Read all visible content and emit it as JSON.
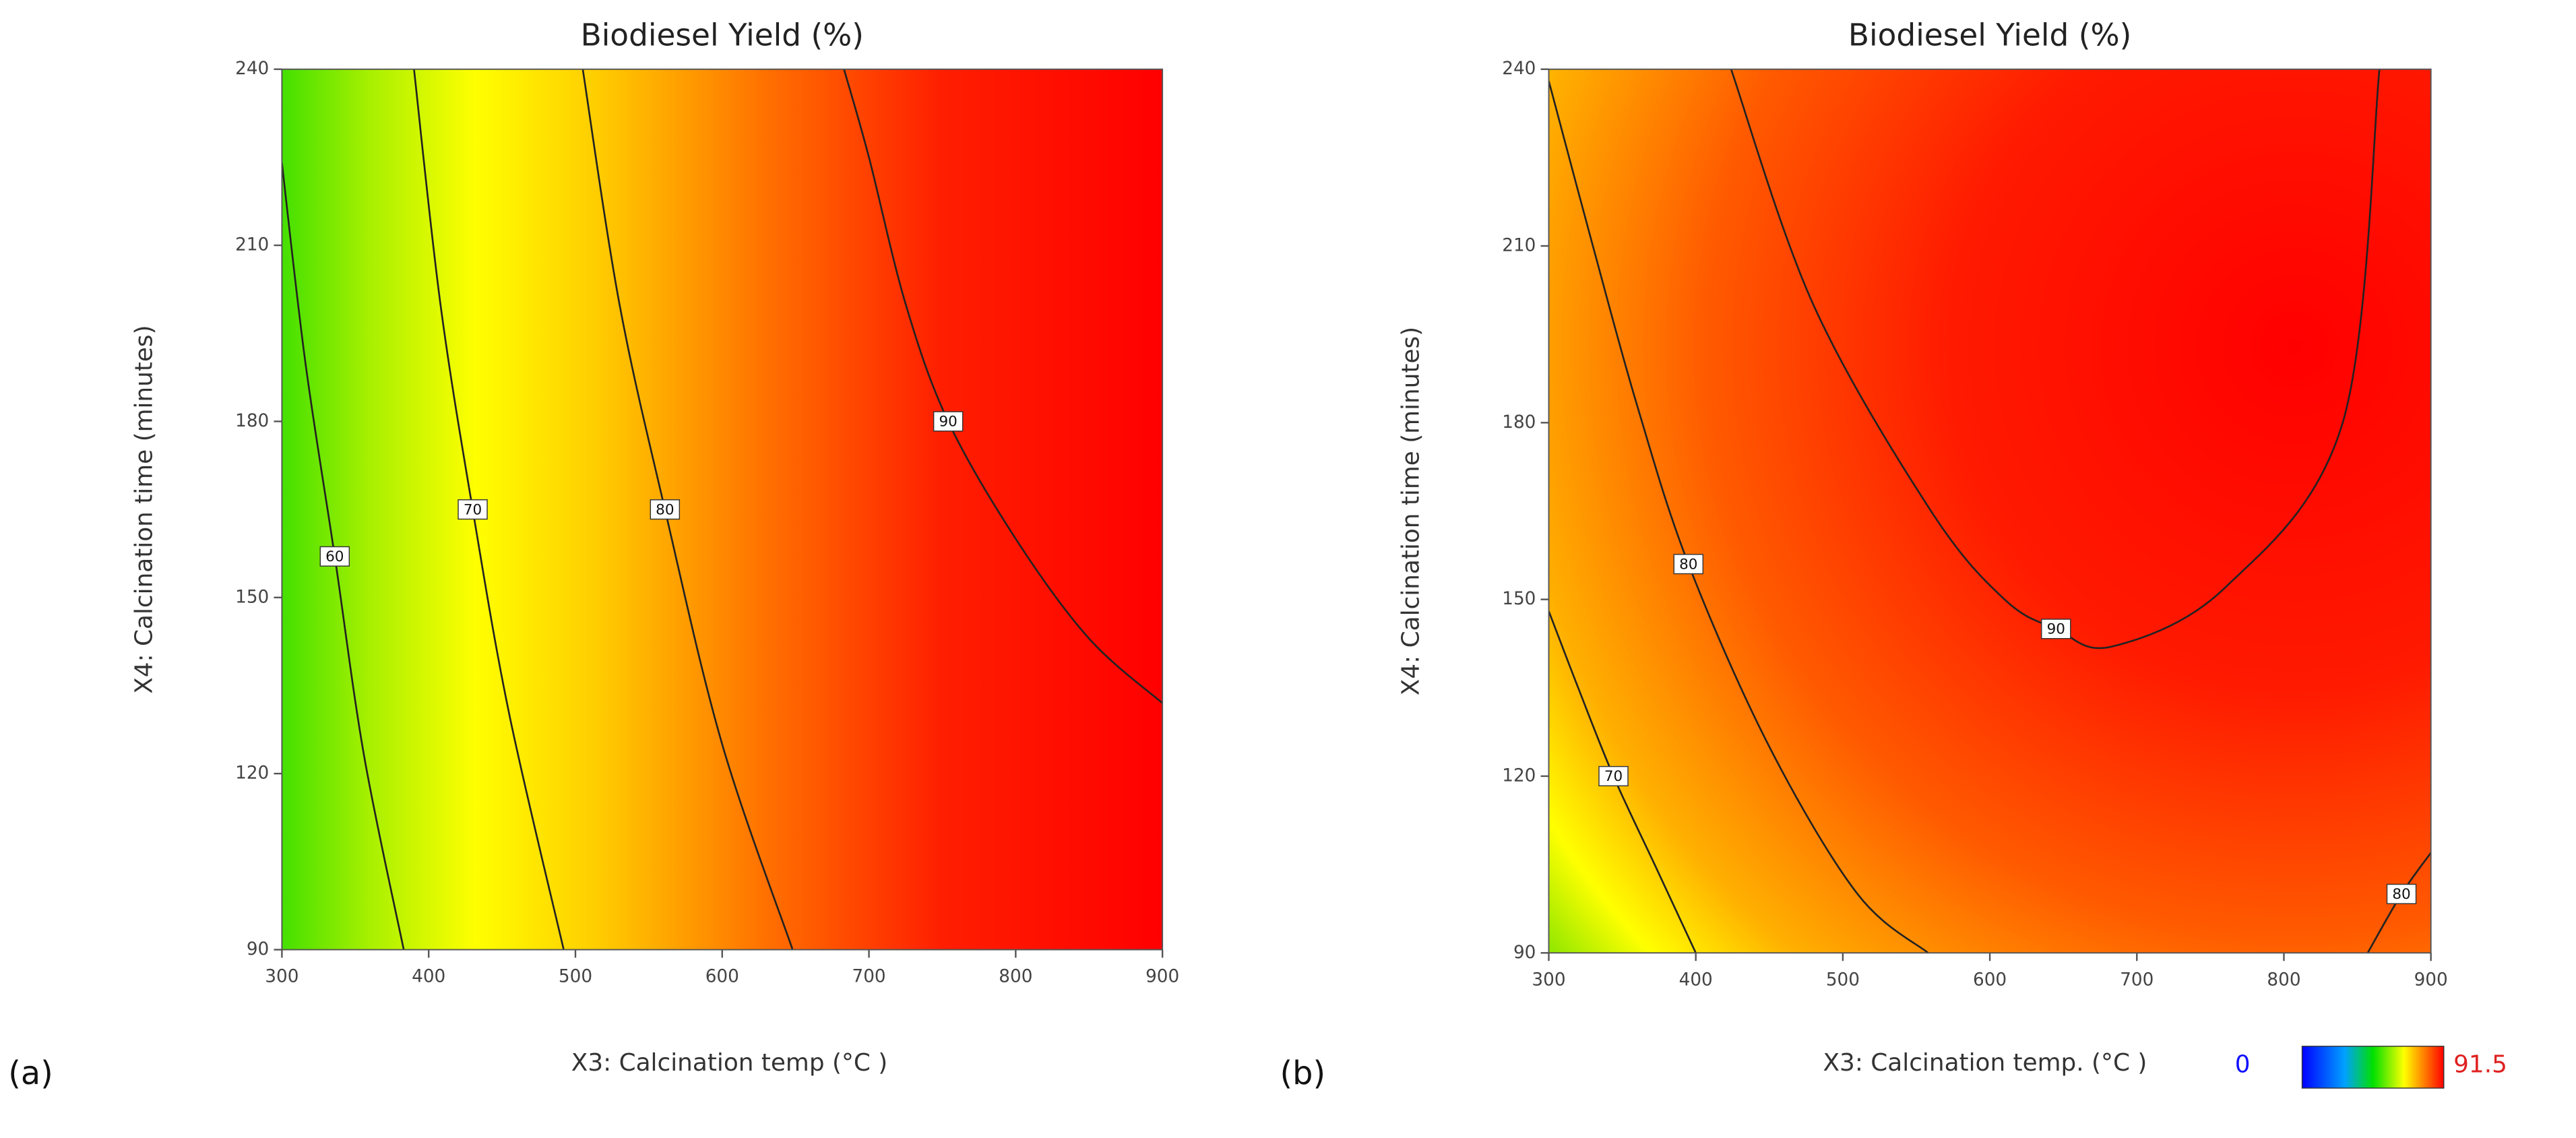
{
  "chart_data": [
    {
      "type": "contour",
      "panel": "(a)",
      "title": "Biodiesel Yield (%)",
      "xlabel": "X3: Calcination temp (°C )",
      "ylabel": "X4: Calcination time (minutes)",
      "xlim": [
        300,
        900
      ],
      "ylim": [
        90,
        240
      ],
      "xticks": [
        300,
        400,
        500,
        600,
        700,
        800,
        900
      ],
      "yticks": [
        90,
        120,
        150,
        180,
        210,
        240
      ],
      "contours": [
        {
          "level": 60,
          "x": [
            300,
            316,
            336,
            356,
            383
          ],
          "y": [
            224,
            190,
            157,
            123,
            90
          ]
        },
        {
          "level": 70,
          "x": [
            390,
            408,
            430,
            455,
            492
          ],
          "y": [
            240,
            200,
            165,
            130,
            90
          ]
        },
        {
          "level": 80,
          "x": [
            505,
            530,
            561,
            600,
            648
          ],
          "y": [
            240,
            200,
            165,
            125,
            90
          ]
        },
        {
          "level": 90,
          "x": [
            683,
            700,
            725,
            754,
            800,
            850,
            900
          ],
          "y": [
            240,
            225,
            200,
            180,
            160,
            143,
            132
          ]
        }
      ]
    },
    {
      "type": "contour",
      "panel": "(b)",
      "title": "Biodiesel Yield (%)",
      "xlabel": "X3: Calcination temp. (°C )",
      "ylabel": "X4: Calcination time (minutes)",
      "xlim": [
        300,
        900
      ],
      "ylim": [
        90,
        240
      ],
      "xticks": [
        300,
        400,
        500,
        600,
        700,
        800,
        900
      ],
      "yticks": [
        90,
        120,
        150,
        180,
        210,
        240
      ],
      "contours": [
        {
          "level": 90,
          "x": [
            424,
            480,
            560,
            610,
            645,
            683,
            760,
            840,
            865
          ],
          "y": [
            240,
            200,
            165,
            150,
            145,
            142,
            152,
            180,
            240
          ]
        },
        {
          "level": 80,
          "x": [
            300,
            330,
            360,
            395,
            450,
            510,
            558
          ],
          "y": [
            238,
            210,
            183,
            156,
            125,
            100,
            90
          ]
        },
        {
          "level": 80,
          "x": [
            857,
            880,
            900
          ],
          "y": [
            90,
            100,
            107
          ]
        },
        {
          "level": 70,
          "x": [
            300,
            320,
            344,
            372,
            400
          ],
          "y": [
            148,
            135,
            120,
            105,
            90
          ]
        }
      ],
      "colorbar": {
        "min": 0,
        "max": 91.5
      }
    }
  ]
}
